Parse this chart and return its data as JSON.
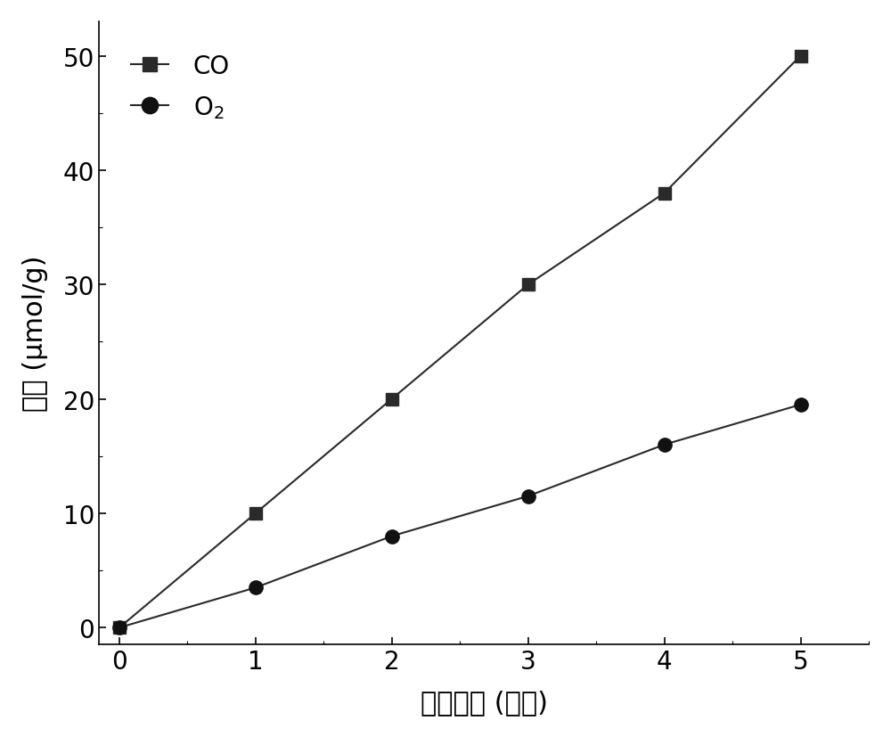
{
  "x": [
    0,
    1,
    2,
    3,
    4,
    5
  ],
  "co_y": [
    0,
    10,
    20,
    30,
    38,
    50
  ],
  "o2_y": [
    0,
    3.5,
    8,
    11.5,
    16,
    19.5
  ],
  "co_label": "CO",
  "o2_label": "$\\mathrm{O_2}$",
  "xlabel": "光照时间 (小时)",
  "ylabel": "产率 (μmol/g)",
  "xlim": [
    -0.15,
    5.5
  ],
  "ylim": [
    -1.5,
    53
  ],
  "xticks": [
    0,
    1,
    2,
    3,
    4,
    5
  ],
  "yticks": [
    0,
    10,
    20,
    30,
    40,
    50
  ],
  "line_color": "#2a2a2a",
  "marker_square_color": "#2a2a2a",
  "marker_circle_color": "#111111",
  "background_color": "#ffffff",
  "marker_size_square": 10,
  "marker_size_circle": 11,
  "linewidth": 1.5,
  "legend_fontsize": 20,
  "axis_label_fontsize": 22,
  "tick_fontsize": 20
}
